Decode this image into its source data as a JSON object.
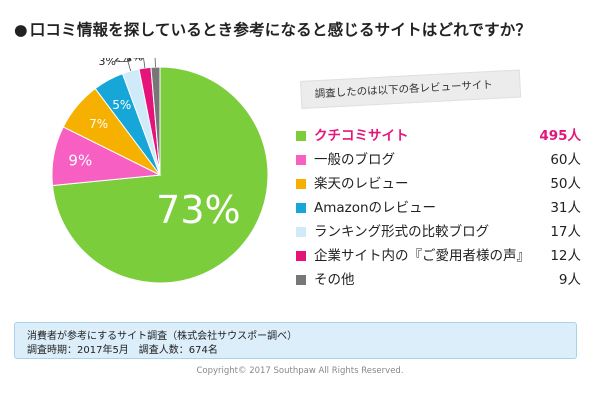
{
  "title": "口コミ情報を探しているとき参考になると感じるサイトはどれですか？",
  "title_bullet": "●",
  "note": "調査したのは以下の各レビューサイト",
  "chart_data": {
    "type": "pie",
    "categories": [
      "クチコミサイト",
      "一般のブログ",
      "楽天のレビュー",
      "Amazonのレビュー",
      "ランキング形式の比較ブログ",
      "企業サイト内の『ご愛用者様の声』",
      "その他"
    ],
    "values": [
      495,
      60,
      50,
      31,
      17,
      12,
      9
    ],
    "value_labels": [
      "495人",
      "60人",
      "50人",
      "31人",
      "17人",
      "12人",
      "9人"
    ],
    "percent_labels": [
      "73%",
      "9%",
      "7%",
      "5%",
      "3%",
      "2%",
      "1%"
    ],
    "colors": [
      "#7ccd3c",
      "#f75fc3",
      "#f5b000",
      "#16a6d8",
      "#cfeaf8",
      "#e5147a",
      "#777777"
    ],
    "highlight_index": 0,
    "legend_placement": "right"
  },
  "footer": {
    "line1": "消費者が参考にするサイト調査（株式会社サウスポー調べ）",
    "line2": "調査時期：2017年5月　調査人数：674名"
  },
  "copyright": "Copyright© 2017 Southpaw All Rights Reserved."
}
